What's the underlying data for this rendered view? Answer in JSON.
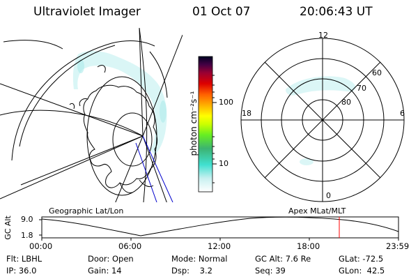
{
  "header": {
    "instrument": "Ultraviolet Imager",
    "date": "01 Oct 07",
    "time": "20:06:43 UT"
  },
  "colorbar": {
    "label": "photon cm⁻²s⁻¹",
    "ticks": [
      "100",
      "10"
    ]
  },
  "polar_plot": {
    "mlt_labels": [
      "12",
      "18",
      "6",
      "0"
    ],
    "lat_labels": [
      "60",
      "70",
      "80"
    ]
  },
  "timeline": {
    "left_title": "Geographic Lat/Lon",
    "right_title": "Apex MLat/MLT",
    "y_axis_label": "GC Alt",
    "y_ticks": [
      "9.0",
      "1.8"
    ],
    "x_ticks": [
      "00:00",
      "06:00",
      "12:00",
      "18:00",
      "23:59"
    ],
    "current_time_marker_color": "#ff0000"
  },
  "info": {
    "row1": {
      "filter": "Flt: LBHL",
      "door": "Door: Open",
      "mode": "Mode: Normal",
      "gc_alt": "GC Alt: 7.6 Re",
      "glat": "GLat: -72.5"
    },
    "row2": {
      "ip": "IP: 36.0",
      "gain": "Gain: 14",
      "dsp": "Dsp:    3.2",
      "seq": "Seq: 39",
      "glon": "GLon:  42.5"
    }
  }
}
